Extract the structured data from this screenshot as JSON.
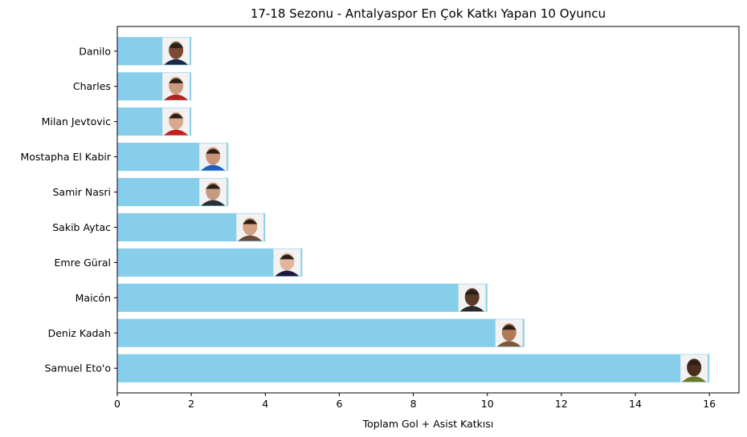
{
  "chart_data": {
    "type": "bar",
    "orientation": "horizontal",
    "title": "17-18 Sezonu - Antalyaspor En Çok Katkı Yapan 10 Oyuncu",
    "xlabel": "Toplam Gol + Asist Katkısı",
    "ylabel": "",
    "xlim": [
      0,
      16.8
    ],
    "xticks": [
      0,
      2,
      4,
      6,
      8,
      10,
      12,
      14,
      16
    ],
    "grid": false,
    "bar_color": "#87ceeb",
    "categories": [
      "Danilo",
      "Charles",
      "Milan Jevtovic",
      "Mostapha El Kabir",
      "Samir Nasri",
      "Sakib Aytac",
      "Emre Güral",
      "Maicón",
      "Deniz Kadah",
      "Samuel Eto'o"
    ],
    "values": [
      2,
      2,
      2,
      3,
      3,
      4,
      5,
      10,
      11,
      16
    ],
    "marker": "player-photo-at-bar-end"
  }
}
